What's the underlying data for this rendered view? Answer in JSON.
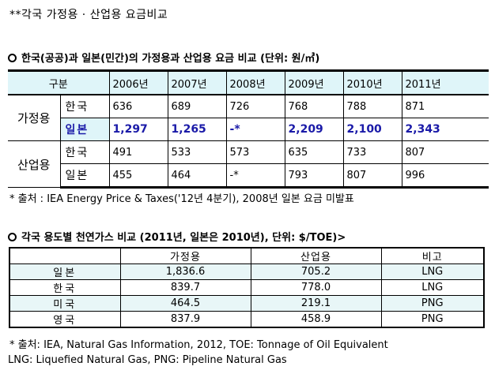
{
  "header": {
    "title": "**각국 가정용 · 산업용 요금비교"
  },
  "section1": {
    "title": "한국(공공)과 일본(민간)의 가정용과 산업용 요금 비교 (단위: 원/㎥)",
    "columns": [
      "구분",
      "2006년",
      "2007년",
      "2008년",
      "2009년",
      "2010년",
      "2011년"
    ],
    "groups": [
      {
        "label": "가정용",
        "rows": [
          {
            "country": "한국",
            "values": [
              "636",
              "689",
              "726",
              "768",
              "788",
              "871"
            ]
          },
          {
            "country": "일본",
            "values": [
              "1,297",
              "1,265",
              "-*",
              "2,209",
              "2,100",
              "2,343"
            ]
          }
        ]
      },
      {
        "label": "산업용",
        "rows": [
          {
            "country": "한국",
            "values": [
              "491",
              "533",
              "573",
              "635",
              "733",
              "807"
            ]
          },
          {
            "country": "일본",
            "values": [
              "455",
              "464",
              "-*",
              "793",
              "807",
              "996"
            ]
          }
        ]
      }
    ],
    "note": "* 출처 : IEA Energy Price & Taxes('12년 4분기), 2008년 일본 요금 미발표"
  },
  "section2": {
    "title": "각국 용도별 천연가스 비교 (2011년, 일본은 2010년), 단위: $/TOE)>",
    "columns": [
      "",
      "가정용",
      "산업용",
      "비고"
    ],
    "rows": [
      {
        "country": "일본",
        "home": "1,836.6",
        "industry": "705.2",
        "remark": "LNG"
      },
      {
        "country": "한국",
        "home": "839.7",
        "industry": "778.0",
        "remark": "LNG"
      },
      {
        "country": "미국",
        "home": "464.5",
        "industry": "219.1",
        "remark": "PNG"
      },
      {
        "country": "영국",
        "home": "837.9",
        "industry": "458.9",
        "remark": "PNG"
      }
    ],
    "note": "* 출처: IEA, Natural Gas Information, 2012, TOE: Tonnage of Oil Equivalent",
    "note2": "LNG: Liquefied Natural Gas, PNG: Pipeline Natural Gas"
  },
  "colors": {
    "header_fill": "#dff5f9",
    "highlight_text": "#1a1aa8",
    "alt_row": "#e8f6f7"
  }
}
